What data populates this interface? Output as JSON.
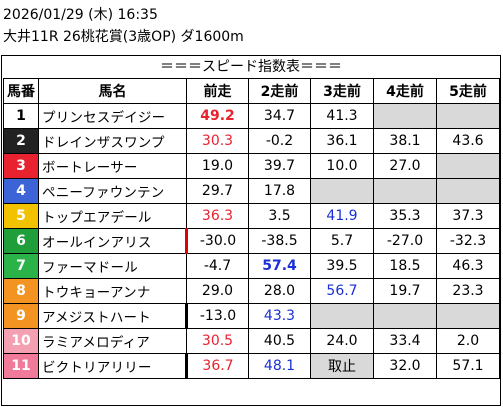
{
  "header": {
    "datetime": "2026/01/29 (木) 16:35",
    "race": "大井11R 26桃花賞(3歳OP) ダ1600m"
  },
  "subtitle": "＝＝＝スピード指数表＝＝＝",
  "columns": [
    "馬番",
    "馬名",
    "前走",
    "2走前",
    "3走前",
    "4走前",
    "5走前"
  ],
  "rows": [
    {
      "no": "1",
      "bg": "#ffffff",
      "fg": "#000000",
      "name": "プリンセスデイジー",
      "v": [
        "49.2",
        "34.7",
        "41.3",
        "",
        ""
      ]
    },
    {
      "no": "2",
      "bg": "#222222",
      "fg": "#ffffff",
      "name": "ドレインザスワンプ",
      "v": [
        "30.3",
        "-0.2",
        "36.1",
        "38.1",
        "43.6"
      ]
    },
    {
      "no": "3",
      "bg": "#e8222e",
      "fg": "#ffffff",
      "name": "ボートレーサー",
      "v": [
        "19.0",
        "39.7",
        "10.0",
        "27.0",
        ""
      ]
    },
    {
      "no": "4",
      "bg": "#3d64d6",
      "fg": "#ffffff",
      "name": "ペニーファウンテン",
      "v": [
        "29.7",
        "17.8",
        "",
        "",
        ""
      ]
    },
    {
      "no": "5",
      "bg": "#f2c200",
      "fg": "#ffffff",
      "name": "トップエアデール",
      "v": [
        "36.3",
        "3.5",
        "41.9",
        "35.3",
        "37.3"
      ]
    },
    {
      "no": "6",
      "bg": "#1f9e3a",
      "fg": "#ffffff",
      "name": "オールインアリス",
      "v": [
        "-30.0",
        "-38.5",
        "5.7",
        "-27.0",
        "-32.3"
      ]
    },
    {
      "no": "7",
      "bg": "#2bb34a",
      "fg": "#ffffff",
      "name": "ファーマドール",
      "v": [
        "-4.7",
        "57.4",
        "39.5",
        "18.5",
        "46.3"
      ]
    },
    {
      "no": "8",
      "bg": "#f39422",
      "fg": "#ffffff",
      "name": "トウキョーアンナ",
      "v": [
        "29.0",
        "28.0",
        "56.7",
        "19.7",
        "23.3"
      ]
    },
    {
      "no": "9",
      "bg": "#f39422",
      "fg": "#ffffff",
      "name": "アメジストハート",
      "v": [
        "-13.0",
        "43.3",
        "",
        "",
        ""
      ]
    },
    {
      "no": "10",
      "bg": "#f3a0b3",
      "fg": "#ffffff",
      "name": "ラミアメロディア",
      "v": [
        "30.5",
        "40.5",
        "24.0",
        "33.4",
        "2.0"
      ]
    },
    {
      "no": "11",
      "bg": "#f07a99",
      "fg": "#ffffff",
      "name": "ビクトリアリリー",
      "v": [
        "36.7",
        "48.1",
        "取止",
        "32.0",
        "57.1"
      ]
    }
  ],
  "styles": {
    "red_text": "#e8222e",
    "blue_text": "#1a2fd6",
    "empty_cell": "#d9d9d9"
  }
}
